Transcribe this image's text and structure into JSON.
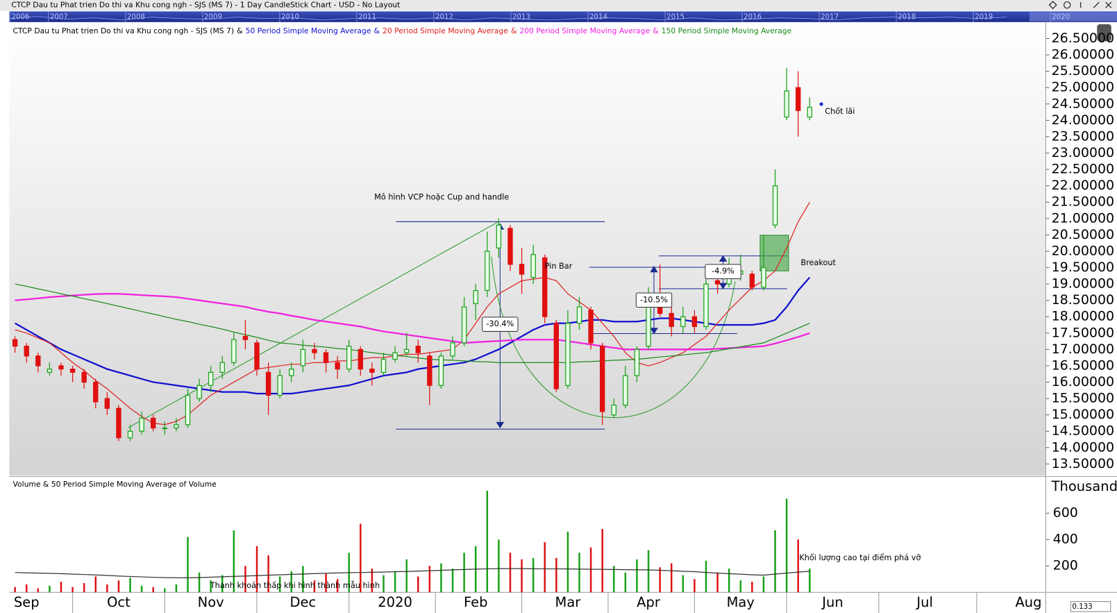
{
  "window_title": "CTCP Dau tu Phat trien Do thi va Khu cong ngh - SJS (MS 7) - 1 Day CandleStick Chart - USD - No Layout",
  "overview_years": [
    "2006",
    "2007",
    "2008",
    "2009",
    "2010",
    "2011",
    "2012",
    "2013",
    "2014",
    "2015",
    "2016",
    "2017",
    "2018",
    "2019",
    "2020"
  ],
  "zoom": "0.133",
  "chart_data": [
    {
      "type": "candlestick",
      "title": "CTCP Dau tu Phat trien Do thi va Khu cong ngh - SJS (MS 7)",
      "legend_separator": "&",
      "categories": [
        null,
        "Sep",
        null,
        null,
        null,
        null,
        null,
        null,
        null,
        "Oct",
        null,
        null,
        null,
        null,
        null,
        null,
        null,
        "Nov",
        null,
        null,
        null,
        null,
        null,
        null,
        null,
        "Dec",
        null,
        null,
        null,
        null,
        null,
        null,
        null,
        "2020",
        null,
        null,
        null,
        null,
        null,
        null,
        "Feb",
        null,
        null,
        null,
        null,
        null,
        null,
        null,
        "Mar",
        null,
        null,
        null,
        null,
        null,
        null,
        "Apr",
        null,
        null,
        null,
        null,
        null,
        null,
        null,
        "May",
        null,
        null,
        null,
        null,
        null,
        null,
        null,
        "Jun",
        null,
        null,
        null,
        null,
        null,
        null,
        null,
        "Jul",
        null,
        null,
        null,
        null,
        null,
        null,
        null,
        null,
        "Aug",
        null
      ],
      "up_color": "#16a016",
      "down_color": "#e01010",
      "open": [
        17.3,
        17.1,
        16.8,
        16.3,
        16.5,
        16.4,
        16.3,
        16.0,
        15.5,
        15.2,
        14.3,
        14.5,
        14.9,
        14.6,
        14.6,
        14.7,
        15.5,
        15.9,
        16.3,
        16.6,
        17.4,
        17.2,
        16.3,
        15.6,
        16.2,
        16.5,
        17.0,
        16.9,
        16.6,
        16.4,
        17.0,
        16.4,
        16.3,
        16.7,
        16.9,
        17.1,
        16.8,
        15.9,
        16.8,
        17.2,
        18.4,
        18.8,
        20.1,
        20.7,
        19.6,
        19.2,
        19.8,
        17.8,
        15.9,
        17.8,
        18.2,
        17.1,
        15.0,
        15.3,
        16.2,
        17.1,
        18.6,
        18.1,
        17.7,
        18.0,
        17.7,
        19.1,
        19.0,
        19.3,
        19.3,
        18.9,
        20.8,
        24.1,
        25.0,
        24.1,
        null,
        null,
        null,
        null,
        null,
        null,
        null,
        null,
        null,
        null,
        null,
        null,
        null,
        null,
        null,
        null,
        null,
        null,
        null,
        null
      ],
      "high": [
        17.4,
        17.2,
        16.9,
        16.6,
        16.6,
        16.5,
        16.4,
        16.1,
        15.7,
        15.3,
        14.7,
        15.1,
        15.0,
        14.8,
        14.9,
        15.8,
        16.1,
        16.5,
        16.8,
        17.5,
        17.9,
        17.3,
        16.6,
        16.4,
        16.6,
        17.3,
        17.2,
        17.0,
        16.8,
        17.3,
        17.1,
        16.6,
        16.9,
        17.1,
        17.5,
        17.3,
        16.9,
        16.9,
        17.4,
        18.6,
        19.0,
        20.6,
        21.0,
        20.8,
        20.1,
        20.2,
        19.9,
        17.9,
        18.2,
        18.6,
        18.3,
        17.2,
        15.5,
        16.5,
        17.1,
        18.9,
        19.6,
        18.5,
        18.3,
        18.2,
        19.2,
        19.3,
        19.8,
        19.9,
        19.4,
        20.5,
        22.5,
        25.6,
        25.5,
        24.7,
        null,
        null,
        null,
        null,
        null,
        null,
        null,
        null,
        null,
        null,
        null,
        null,
        null,
        null,
        null,
        null,
        null,
        null,
        null,
        null
      ],
      "low": [
        16.9,
        16.6,
        16.3,
        16.2,
        16.2,
        16.0,
        15.8,
        15.2,
        15.0,
        14.2,
        14.2,
        14.4,
        14.5,
        14.4,
        14.5,
        14.6,
        15.4,
        15.7,
        16.1,
        16.5,
        17.0,
        16.2,
        15.0,
        15.5,
        16.0,
        16.3,
        16.7,
        16.3,
        16.1,
        16.3,
        16.2,
        15.9,
        16.2,
        16.6,
        16.8,
        16.6,
        15.3,
        15.8,
        16.7,
        17.1,
        17.9,
        18.6,
        19.8,
        19.4,
        18.7,
        19.0,
        17.8,
        15.7,
        15.8,
        17.6,
        17.0,
        14.7,
        14.9,
        15.2,
        16.0,
        17.0,
        18.0,
        17.4,
        17.5,
        17.5,
        17.6,
        18.7,
        18.9,
        19.1,
        18.8,
        18.8,
        20.7,
        24.0,
        23.5,
        24.0,
        null,
        null,
        null,
        null,
        null,
        null,
        null,
        null,
        null,
        null,
        null,
        null,
        null,
        null,
        null,
        null,
        null,
        null,
        null,
        null
      ],
      "close": [
        17.1,
        16.8,
        16.5,
        16.4,
        16.4,
        16.3,
        16.0,
        15.4,
        15.2,
        14.3,
        14.5,
        14.9,
        14.6,
        14.6,
        14.7,
        15.6,
        15.9,
        16.3,
        16.6,
        17.3,
        17.3,
        16.4,
        15.6,
        16.2,
        16.4,
        17.0,
        16.9,
        16.6,
        16.4,
        17.1,
        16.4,
        16.3,
        16.7,
        16.9,
        17.0,
        16.9,
        15.9,
        16.8,
        17.2,
        18.3,
        18.8,
        20.0,
        20.8,
        19.6,
        19.3,
        19.9,
        18.0,
        15.8,
        17.8,
        18.3,
        17.2,
        15.1,
        15.3,
        16.2,
        17.0,
        18.4,
        18.1,
        17.7,
        18.0,
        17.7,
        19.0,
        19.0,
        19.3,
        19.4,
        18.9,
        19.5,
        22.0,
        24.9,
        24.3,
        24.4,
        null,
        null,
        null,
        null,
        null,
        null,
        null,
        null,
        null,
        null,
        null,
        null,
        null,
        null,
        null,
        null,
        null,
        null,
        null,
        null
      ],
      "series": [
        {
          "name": "50 Period Simple Moving Average",
          "color": "#1010d0",
          "width": 2.2,
          "values": [
            17.8,
            17.6,
            17.4,
            17.2,
            17.0,
            16.85,
            16.7,
            16.55,
            16.4,
            16.3,
            16.2,
            16.1,
            16.0,
            15.95,
            15.9,
            15.85,
            15.8,
            15.75,
            15.7,
            15.7,
            15.7,
            15.65,
            15.65,
            15.65,
            15.65,
            15.7,
            15.75,
            15.8,
            15.85,
            15.9,
            16.0,
            16.1,
            16.2,
            16.25,
            16.3,
            16.4,
            16.45,
            16.5,
            16.55,
            16.6,
            16.7,
            16.85,
            17.0,
            17.2,
            17.4,
            17.6,
            17.75,
            17.8,
            17.8,
            17.85,
            17.9,
            17.9,
            17.85,
            17.85,
            17.85,
            17.9,
            17.95,
            17.95,
            17.9,
            17.85,
            17.8,
            17.75,
            17.75,
            17.75,
            17.75,
            17.8,
            17.9,
            18.3,
            18.8,
            19.2,
            null,
            null,
            null,
            null,
            null,
            null,
            null,
            null,
            null,
            null,
            null,
            null,
            null,
            null,
            null,
            null,
            null,
            null,
            null,
            null
          ]
        },
        {
          "name": "20 Period Simple Moving Average",
          "color": "#e02020",
          "width": 1.2,
          "values": [
            17.6,
            17.5,
            17.35,
            17.2,
            16.9,
            16.6,
            16.35,
            16.05,
            15.8,
            15.5,
            15.2,
            14.95,
            14.75,
            14.7,
            14.8,
            15.0,
            15.3,
            15.6,
            15.8,
            16.0,
            16.2,
            16.4,
            16.45,
            16.5,
            16.55,
            16.55,
            16.6,
            16.6,
            16.65,
            16.65,
            16.7,
            16.75,
            16.75,
            16.8,
            16.85,
            16.85,
            16.9,
            16.95,
            17.0,
            17.3,
            17.8,
            18.3,
            18.7,
            18.9,
            19.1,
            19.15,
            19.2,
            19.1,
            18.7,
            18.45,
            18.2,
            17.8,
            17.4,
            16.9,
            16.6,
            16.5,
            16.6,
            16.75,
            16.9,
            17.15,
            17.4,
            17.8,
            18.2,
            18.55,
            18.9,
            19.1,
            19.4,
            20.1,
            20.9,
            21.5,
            null,
            null,
            null,
            null,
            null,
            null,
            null,
            null,
            null,
            null,
            null,
            null,
            null,
            null,
            null,
            null,
            null,
            null,
            null,
            null
          ]
        },
        {
          "name": "200 Period Simple Moving Average",
          "color": "#f020e0",
          "width": 2.2,
          "values": [
            18.5,
            18.53,
            18.56,
            18.6,
            18.62,
            18.65,
            18.67,
            18.69,
            18.7,
            18.7,
            18.68,
            18.66,
            18.64,
            18.62,
            18.6,
            18.55,
            18.5,
            18.45,
            18.4,
            18.35,
            18.3,
            18.22,
            18.15,
            18.1,
            18.03,
            17.97,
            17.9,
            17.85,
            17.8,
            17.75,
            17.7,
            17.62,
            17.55,
            17.5,
            17.45,
            17.4,
            17.35,
            17.3,
            17.25,
            17.2,
            17.22,
            17.24,
            17.26,
            17.28,
            17.3,
            17.3,
            17.3,
            17.3,
            17.25,
            17.2,
            17.15,
            17.1,
            17.05,
            17.0,
            17.0,
            17.0,
            17.0,
            17.0,
            17.0,
            17.0,
            17.0,
            17.02,
            17.04,
            17.06,
            17.08,
            17.1,
            17.18,
            17.28,
            17.38,
            17.5,
            null,
            null,
            null,
            null,
            null,
            null,
            null,
            null,
            null,
            null,
            null,
            null,
            null,
            null,
            null,
            null,
            null,
            null,
            null,
            null
          ]
        },
        {
          "name": "150 Period Simple Moving Average",
          "color": "#1a8a1a",
          "width": 1.2,
          "values": [
            19.0,
            18.93,
            18.85,
            18.78,
            18.7,
            18.63,
            18.55,
            18.48,
            18.4,
            18.32,
            18.24,
            18.16,
            18.08,
            18.0,
            17.92,
            17.85,
            17.77,
            17.7,
            17.62,
            17.53,
            17.45,
            17.37,
            17.28,
            17.2,
            17.17,
            17.13,
            17.1,
            17.07,
            17.03,
            17.0,
            16.95,
            16.9,
            16.86,
            16.82,
            16.78,
            16.74,
            16.7,
            16.68,
            16.67,
            16.65,
            16.63,
            16.62,
            16.6,
            16.6,
            16.6,
            16.6,
            16.6,
            16.6,
            16.6,
            16.62,
            16.63,
            16.65,
            16.67,
            16.68,
            16.7,
            16.73,
            16.77,
            16.8,
            16.83,
            16.87,
            16.9,
            16.96,
            17.02,
            17.08,
            17.14,
            17.2,
            17.35,
            17.5,
            17.65,
            17.8,
            null,
            null,
            null,
            null,
            null,
            null,
            null,
            null,
            null,
            null,
            null,
            null,
            null,
            null,
            null,
            null,
            null,
            null,
            null,
            null
          ]
        }
      ],
      "ylim": [
        13.15,
        26.98
      ],
      "yticks": [
        {
          "value": 26.5,
          "label": "26.50000"
        },
        {
          "value": 26,
          "label": "26.00000"
        },
        {
          "value": 25.5,
          "label": "25.50000"
        },
        {
          "value": 25,
          "label": "25.00000"
        },
        {
          "value": 24.5,
          "label": "24.50000"
        },
        {
          "value": 24,
          "label": "24.00000"
        },
        {
          "value": 23.5,
          "label": "23.50000"
        },
        {
          "value": 23,
          "label": "23.00000"
        },
        {
          "value": 22.5,
          "label": "22.50000"
        },
        {
          "value": 22,
          "label": "22.00000"
        },
        {
          "value": 21.5,
          "label": "21.50000"
        },
        {
          "value": 21,
          "label": "21.00000"
        },
        {
          "value": 20.5,
          "label": "20.50000"
        },
        {
          "value": 20,
          "label": "20.00000"
        },
        {
          "value": 19.5,
          "label": "19.50000"
        },
        {
          "value": 19,
          "label": "19.00000"
        },
        {
          "value": 18.5,
          "label": "18.50000"
        },
        {
          "value": 18,
          "label": "18.00000"
        },
        {
          "value": 17.5,
          "label": "17.50000"
        },
        {
          "value": 17,
          "label": "17.00000"
        },
        {
          "value": 16.5,
          "label": "16.50000"
        },
        {
          "value": 16,
          "label": "16.00000"
        },
        {
          "value": 15.5,
          "label": "15.50000"
        },
        {
          "value": 15,
          "label": "15.00000"
        },
        {
          "value": 14.5,
          "label": "14.50000"
        },
        {
          "value": 14,
          "label": "14.00000"
        },
        {
          "value": 13.5,
          "label": "13.50000"
        }
      ],
      "annotations": [
        "Mô hình VCP hoặc Cup and handle",
        "Pin Bar",
        "-30.4%",
        "-10.5%",
        "-4.9%",
        "Breakout",
        "Chốt lãi"
      ]
    },
    {
      "type": "bar",
      "title": "Volume & 50 Period Simple Moving Average of Volume",
      "unit_label": "Thousand",
      "values": [
        40,
        60,
        30,
        50,
        80,
        40,
        70,
        120,
        60,
        90,
        110,
        50,
        40,
        30,
        60,
        420,
        150,
        90,
        130,
        470,
        200,
        350,
        280,
        120,
        160,
        200,
        90,
        140,
        100,
        300,
        520,
        180,
        130,
        160,
        250,
        120,
        200,
        220,
        180,
        300,
        350,
        770,
        400,
        300,
        250,
        260,
        380,
        260,
        460,
        300,
        340,
        480,
        200,
        150,
        250,
        320,
        190,
        220,
        130,
        100,
        240,
        150,
        180,
        90,
        80,
        120,
        470,
        710,
        400,
        180,
        null,
        null,
        null,
        null,
        null,
        null,
        null,
        null,
        null,
        null,
        null,
        null,
        null,
        null,
        null,
        null,
        null,
        null,
        null,
        null
      ],
      "ma_color": "#303030",
      "ma_values": [
        150,
        148,
        146,
        144,
        141,
        138,
        135,
        132,
        128,
        124,
        120,
        117,
        114,
        112,
        110,
        110,
        112,
        115,
        118,
        121,
        124,
        127,
        130,
        133,
        136,
        139,
        142,
        145,
        147,
        149,
        150,
        152,
        154,
        156,
        158,
        161,
        164,
        167,
        170,
        173,
        176,
        178,
        180,
        180,
        180,
        179,
        178,
        178,
        177,
        176,
        175,
        174,
        173,
        172,
        171,
        170,
        167,
        164,
        160,
        156,
        151,
        146,
        141,
        137,
        133,
        130,
        138,
        146,
        153,
        160,
        null,
        null,
        null,
        null,
        null,
        null,
        null,
        null,
        null,
        null,
        null,
        null,
        null,
        null,
        null,
        null,
        null,
        null,
        null,
        null
      ],
      "ylim": [
        0,
        870
      ],
      "yticks": [
        200,
        400,
        600
      ],
      "annotations": [
        "Khối lượng cao tại điểm phá vỡ",
        "Thanh khoản thấp khi hình thành mẫu hình"
      ]
    }
  ]
}
